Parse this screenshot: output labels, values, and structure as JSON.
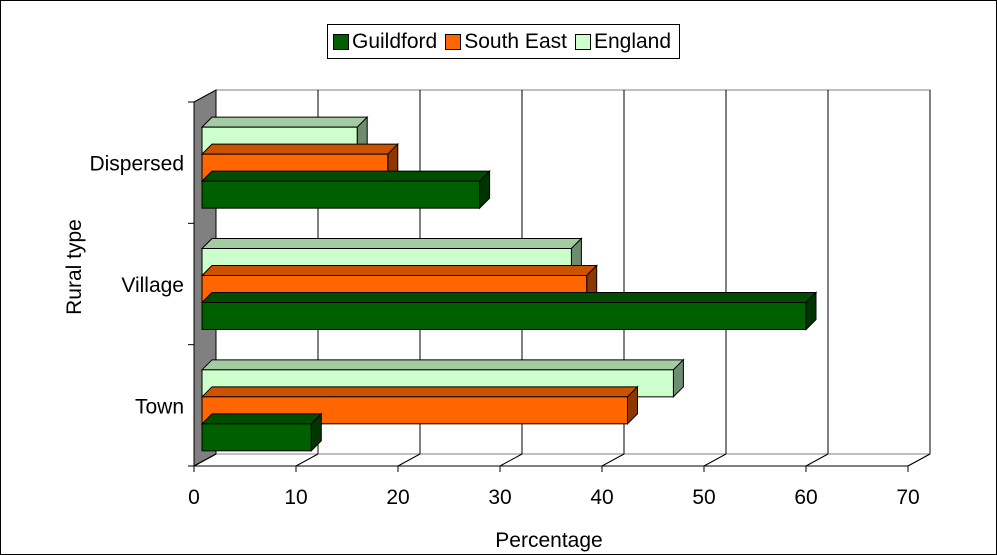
{
  "chart_data": {
    "type": "bar",
    "orientation": "horizontal",
    "style": "3d",
    "categories": [
      "Dispersed",
      "Village",
      "Town"
    ],
    "series": [
      {
        "name": "Guildford",
        "values": [
          28,
          60,
          11.5
        ],
        "color": "#006000"
      },
      {
        "name": "South East",
        "values": [
          19,
          38.5,
          42.5
        ],
        "color": "#ff6600"
      },
      {
        "name": "England",
        "values": [
          16,
          37,
          47
        ],
        "color": "#ccffcc"
      }
    ],
    "xlabel": "Percentage",
    "ylabel": "Rural type",
    "xlim": [
      0,
      70
    ],
    "xticks": [
      "0",
      "10",
      "20",
      "30",
      "40",
      "50",
      "60",
      "70"
    ],
    "grid": "vertical",
    "legend_position": "top"
  }
}
